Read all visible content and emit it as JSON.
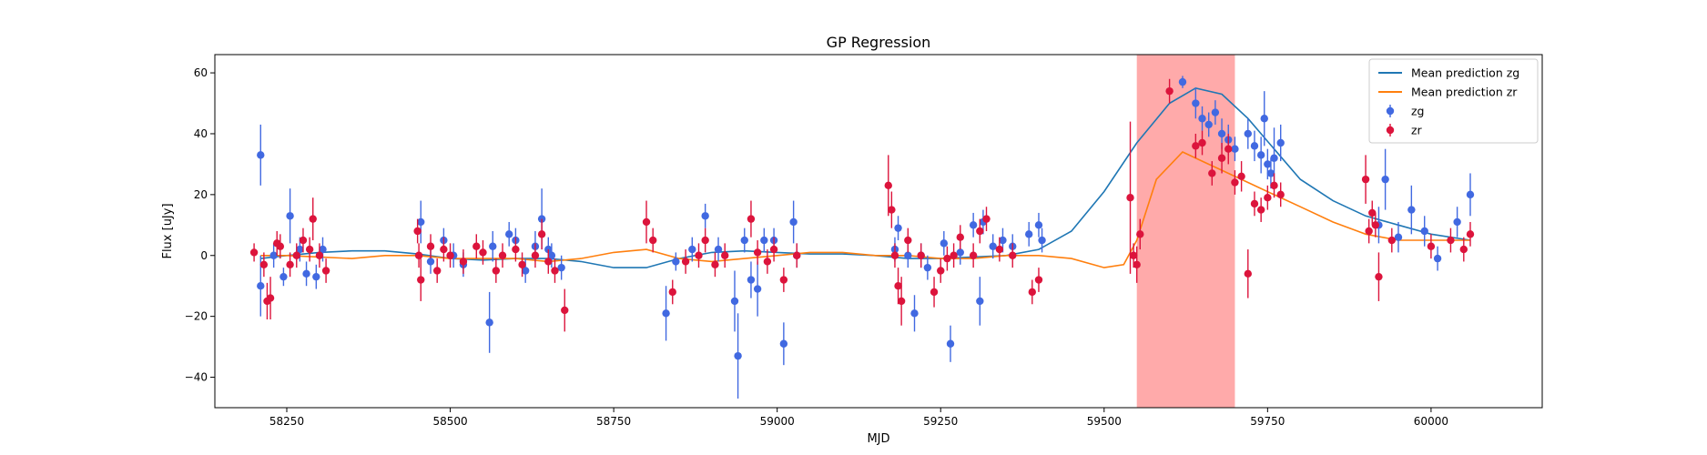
{
  "chart_data": {
    "type": "scatter",
    "title": "GP Regression",
    "xlabel": "MJD",
    "ylabel": "Flux [uJy]",
    "xlim": [
      58140,
      60170
    ],
    "ylim": [
      -50,
      66
    ],
    "xticks": [
      58250,
      58500,
      58750,
      59000,
      59250,
      59500,
      59750,
      60000
    ],
    "yticks": [
      -40,
      -20,
      0,
      20,
      40,
      60
    ],
    "grid": false,
    "legend_position": "top-right",
    "highlight_region": {
      "x": [
        59550,
        59700
      ],
      "color": "#ffaaaa"
    },
    "series": [
      {
        "name": "Mean prediction zg",
        "kind": "line",
        "color": "#1f77b4",
        "x": [
          58210,
          58250,
          58300,
          58350,
          58400,
          58450,
          58500,
          58550,
          58600,
          58650,
          58700,
          58750,
          58800,
          58850,
          58900,
          58950,
          59000,
          59050,
          59100,
          59150,
          59200,
          59250,
          59300,
          59350,
          59400,
          59450,
          59500,
          59550,
          59600,
          59640,
          59680,
          59720,
          59760,
          59800,
          59850,
          59900,
          59950,
          60000,
          60060
        ],
        "y": [
          -1,
          0,
          1,
          1.5,
          1.5,
          0.5,
          -1,
          -1.5,
          -1,
          -1,
          -2,
          -4,
          -4,
          -1,
          1,
          1.5,
          1,
          0.5,
          0.5,
          0,
          -1,
          -1,
          -0.5,
          0,
          2,
          8,
          21,
          37,
          50,
          55,
          53,
          45,
          35,
          25,
          18,
          13,
          10,
          7,
          5
        ]
      },
      {
        "name": "Mean prediction zr",
        "kind": "line",
        "color": "#ff7f0e",
        "x": [
          58210,
          58250,
          58300,
          58350,
          58400,
          58450,
          58500,
          58550,
          58600,
          58650,
          58700,
          58750,
          58800,
          58850,
          58900,
          58950,
          59000,
          59050,
          59100,
          59150,
          59200,
          59250,
          59300,
          59350,
          59400,
          59450,
          59500,
          59530,
          59550,
          59580,
          59620,
          59650,
          59680,
          59720,
          59760,
          59800,
          59850,
          59900,
          59950,
          60000,
          60060
        ],
        "y": [
          0,
          0,
          -0.5,
          -1,
          0,
          0,
          -1,
          -1,
          -1,
          -2,
          -1,
          1,
          2,
          -1,
          -2,
          -1,
          0,
          1,
          1,
          0,
          0,
          -1,
          -1,
          0,
          0,
          -1,
          -4,
          -3,
          5,
          25,
          34,
          31,
          28,
          24,
          20,
          16,
          11,
          7,
          5,
          5,
          5
        ]
      },
      {
        "name": "zg",
        "kind": "errorbar",
        "color": "#4169e1",
        "x": [
          58210,
          58210,
          58230,
          58245,
          58255,
          58270,
          58280,
          58295,
          58305,
          58455,
          58470,
          58490,
          58505,
          58520,
          58560,
          58565,
          58590,
          58600,
          58615,
          58630,
          58640,
          58650,
          58655,
          58670,
          58830,
          58845,
          58870,
          58890,
          58910,
          58935,
          58940,
          58950,
          58960,
          58970,
          58980,
          58995,
          59010,
          59025,
          59030,
          59180,
          59185,
          59200,
          59210,
          59220,
          59230,
          59255,
          59265,
          59280,
          59300,
          59310,
          59315,
          59330,
          59345,
          59360,
          59385,
          59400,
          59405,
          59620,
          59640,
          59650,
          59660,
          59670,
          59680,
          59690,
          59700,
          59720,
          59730,
          59740,
          59745,
          59750,
          59755,
          59760,
          59770,
          59920,
          59930,
          59950,
          59970,
          59990,
          60010,
          60040,
          60060
        ],
        "y": [
          33,
          -10,
          0,
          -7,
          13,
          2,
          -6,
          -7,
          2,
          11,
          -2,
          5,
          0,
          -3,
          -22,
          3,
          7,
          5,
          -5,
          3,
          12,
          2,
          0,
          -4,
          -19,
          -2,
          2,
          13,
          2,
          -15,
          -33,
          5,
          -8,
          -11,
          5,
          5,
          -29,
          11,
          0,
          2,
          9,
          0,
          -19,
          0,
          -4,
          4,
          -29,
          1,
          10,
          -15,
          11,
          3,
          5,
          3,
          7,
          10,
          5,
          57,
          50,
          45,
          43,
          47,
          40,
          38,
          35,
          40,
          36,
          33,
          45,
          30,
          27,
          32,
          37,
          10,
          25,
          6,
          15,
          8,
          -1,
          11,
          20
        ],
        "yerr": [
          10,
          10,
          4,
          3,
          9,
          4,
          4,
          4,
          4,
          7,
          4,
          4,
          4,
          4,
          10,
          5,
          4,
          4,
          4,
          5,
          10,
          4,
          4,
          4,
          9,
          3,
          4,
          4,
          4,
          10,
          14,
          4,
          6,
          9,
          4,
          4,
          7,
          7,
          4,
          4,
          4,
          4,
          6,
          4,
          4,
          4,
          6,
          4,
          4,
          8,
          4,
          4,
          4,
          4,
          4,
          4,
          4,
          2,
          5,
          4,
          4,
          4,
          5,
          5,
          4,
          5,
          5,
          6,
          9,
          5,
          5,
          10,
          6,
          6,
          10,
          5,
          8,
          5,
          4,
          5,
          7
        ]
      },
      {
        "name": "zr",
        "kind": "errorbar",
        "color": "#dc143c",
        "x": [
          58200,
          58215,
          58220,
          58225,
          58235,
          58240,
          58255,
          58265,
          58275,
          58285,
          58290,
          58300,
          58310,
          58450,
          58452,
          58455,
          58470,
          58480,
          58490,
          58500,
          58520,
          58540,
          58550,
          58570,
          58580,
          58600,
          58610,
          58630,
          58640,
          58650,
          58660,
          58675,
          58800,
          58810,
          58840,
          58860,
          58880,
          58890,
          58905,
          58920,
          58960,
          58970,
          58985,
          58995,
          59010,
          59030,
          59170,
          59175,
          59180,
          59185,
          59190,
          59200,
          59220,
          59240,
          59250,
          59260,
          59270,
          59280,
          59300,
          59310,
          59320,
          59340,
          59360,
          59390,
          59400,
          59540,
          59545,
          59550,
          59555,
          59600,
          59640,
          59650,
          59665,
          59680,
          59690,
          59700,
          59710,
          59720,
          59730,
          59740,
          59750,
          59760,
          59770,
          59900,
          59905,
          59910,
          59915,
          59920,
          59940,
          60000,
          60030,
          60050,
          60060
        ],
        "y": [
          1,
          -3,
          -15,
          -14,
          4,
          3,
          -3,
          0,
          5,
          2,
          12,
          0,
          -5,
          8,
          0,
          -8,
          3,
          -5,
          2,
          0,
          -2,
          3,
          1,
          -5,
          0,
          2,
          -3,
          0,
          7,
          -2,
          -5,
          -18,
          11,
          5,
          -12,
          -2,
          0,
          5,
          -3,
          0,
          12,
          1,
          -2,
          2,
          -8,
          0,
          23,
          15,
          0,
          -10,
          -15,
          5,
          0,
          -12,
          -5,
          -1,
          0,
          6,
          0,
          8,
          12,
          2,
          0,
          -12,
          -8,
          19,
          0,
          -3,
          7,
          54,
          36,
          37,
          27,
          32,
          35,
          24,
          26,
          -6,
          17,
          15,
          19,
          23,
          20,
          25,
          8,
          14,
          10,
          -7,
          5,
          3,
          5,
          2,
          7
        ],
        "yerr": [
          3,
          4,
          6,
          7,
          4,
          4,
          4,
          4,
          4,
          4,
          7,
          4,
          4,
          4,
          4,
          7,
          4,
          4,
          4,
          4,
          4,
          4,
          4,
          4,
          4,
          4,
          4,
          4,
          5,
          4,
          4,
          7,
          7,
          4,
          4,
          4,
          4,
          4,
          4,
          4,
          6,
          4,
          4,
          4,
          4,
          4,
          10,
          6,
          4,
          6,
          8,
          4,
          4,
          5,
          4,
          4,
          4,
          4,
          4,
          4,
          4,
          4,
          4,
          4,
          4,
          25,
          4,
          6,
          5,
          4,
          4,
          4,
          4,
          5,
          5,
          4,
          5,
          8,
          4,
          4,
          4,
          4,
          4,
          8,
          4,
          4,
          4,
          8,
          4,
          4,
          4,
          4,
          4
        ]
      }
    ]
  }
}
